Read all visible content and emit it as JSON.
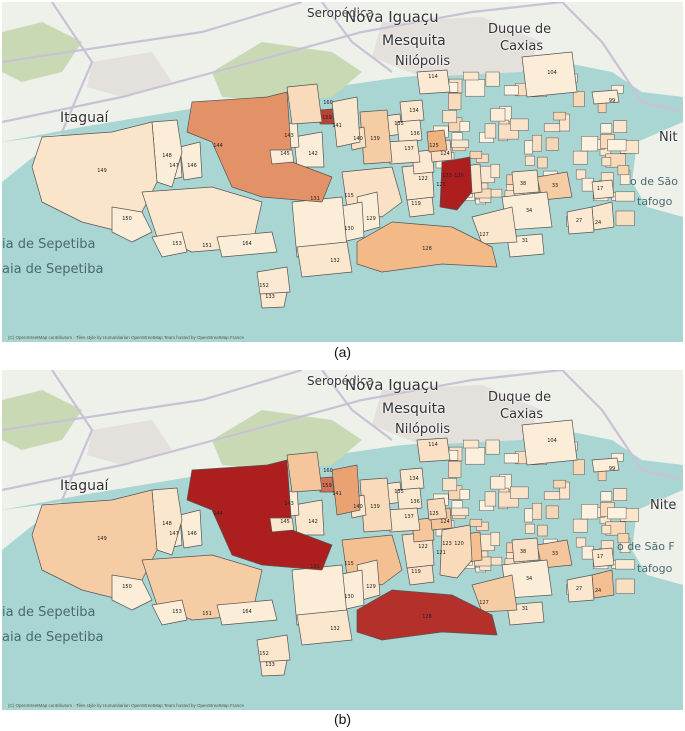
{
  "panels": [
    {
      "id": "a",
      "caption": "(a)",
      "attribution": "(C) OpenStreetMap contributors - Tiles style by Humanitarian OpenStreetMap Team hosted by OpenStreetMap France",
      "regions": {
        "144": 0.6,
        "149": 0.12,
        "128": 0.45,
        "125": 0.5,
        "121": 0.95,
        "139": 0.3,
        "115": 0.15,
        "160": 0.2,
        "141": 0.1,
        "159": 0.85,
        "104": 0.05,
        "114": 0.08,
        "148": 0.05,
        "151": 0.1,
        "131": 0.05,
        "132": 0.1,
        "127": 0.1,
        "34": 0.05,
        "33": 0.3,
        "120": 0.1,
        "123": 0.08,
        "150": 0.05,
        "164": 0.05,
        "153": 0.05,
        "152": 0.08,
        "133": 0.08,
        "142": 0.05,
        "143": 0.05,
        "145": 0.05,
        "146": 0.05,
        "147": 0.05,
        "135": 0.1,
        "137": 0.1,
        "136": 0.08,
        "134": 0.1,
        "122": 0.1,
        "124": 0.15,
        "119": 0.1,
        "130": 0.05,
        "129": 0.05,
        "140": 0.15,
        "31": 0.05,
        "38": 0.1,
        "27": 0.08,
        "24": 0.1,
        "17": 0.08,
        "99": 0.05
      }
    },
    {
      "id": "b",
      "caption": "(b)",
      "attribution": "(C) OpenStreetMap contributors - Tiles style by Humanitarian OpenStreetMap Team hosted by OpenStreetMap France",
      "regions": {
        "144": 0.95,
        "149": 0.3,
        "128": 0.9,
        "125": 0.2,
        "121": 0.2,
        "139": 0.2,
        "115": 0.4,
        "160": 0.35,
        "141": 0.55,
        "159": 0.7,
        "104": 0.05,
        "114": 0.15,
        "148": 0.1,
        "151": 0.3,
        "131": 0.05,
        "132": 0.1,
        "127": 0.3,
        "34": 0.05,
        "33": 0.35,
        "120": 0.4,
        "123": 0.35,
        "150": 0.05,
        "164": 0.05,
        "153": 0.05,
        "152": 0.1,
        "133": 0.1,
        "142": 0.1,
        "143": 0.05,
        "145": 0.1,
        "146": 0.05,
        "147": 0.05,
        "135": 0.1,
        "137": 0.1,
        "136": 0.1,
        "134": 0.1,
        "122": 0.15,
        "124": 0.35,
        "119": 0.15,
        "130": 0.05,
        "129": 0.1,
        "140": 0.1,
        "31": 0.1,
        "38": 0.15,
        "27": 0.1,
        "24": 0.4,
        "17": 0.1,
        "99": 0.05
      }
    }
  ],
  "place_labels": {
    "seropedica": "Seropédica",
    "nova_iguacu": "Nova Iguaçu",
    "mesquita": "Mesquita",
    "nilopolis": "Nilópolis",
    "duque": "Duque de",
    "caxias": "Caxias",
    "itaguai": "Itaguaí",
    "sepetiba1": "ia de Sepetiba",
    "sepetiba2": "aia de Sepetiba",
    "niteroi_a": "Nit",
    "niteroi_b": "Nite",
    "sao": "o de São",
    "sao_b": "o de São F",
    "botafogo": "tafogo",
    "botafogo_b": "tafogo"
  },
  "colors": {
    "water": "#a9d6d3",
    "land": "#eef0ea",
    "green": "#c9d9b4",
    "urban": "#e4e0dc",
    "road": "#c8c2d6",
    "border": "#555555",
    "ramp_low": "#fdf4e3",
    "ramp_mid": "#f2b27c",
    "ramp_high": "#a50f15"
  }
}
